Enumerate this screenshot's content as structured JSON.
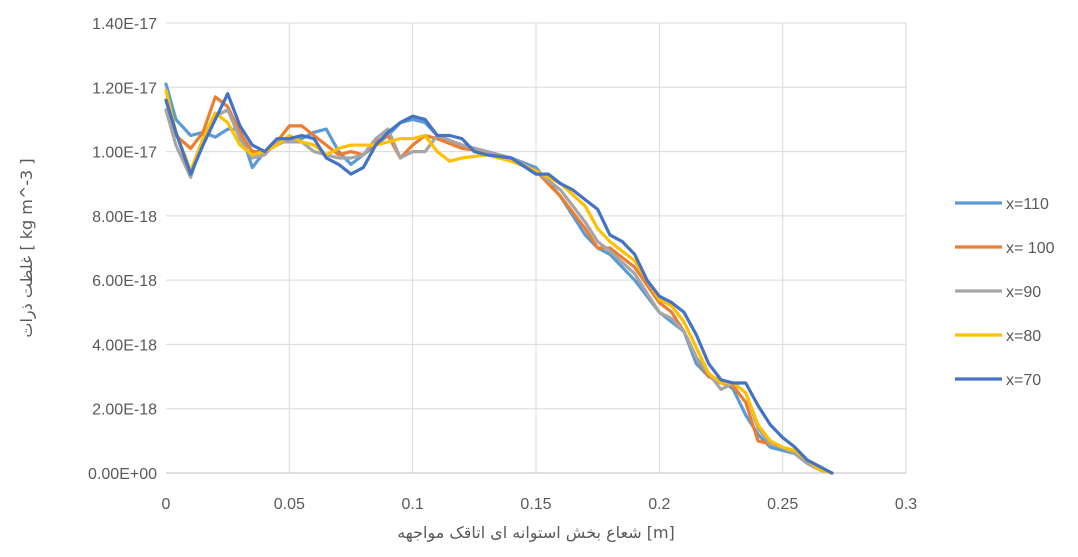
{
  "chart_data": {
    "type": "line",
    "title": "",
    "xlabel": "شعاع بخش استوانه ای اتاقک مواجهه [m]",
    "ylabel": "غلظت ذرات [ kg m^-3 ]",
    "xlim": [
      0,
      0.3
    ],
    "ylim": [
      0,
      1.4e-17
    ],
    "x_ticks": [
      0,
      0.05,
      0.1,
      0.15,
      0.2,
      0.25,
      0.3
    ],
    "x_tick_labels": [
      "0",
      "0.05",
      "0.1",
      "0.15",
      "0.2",
      "0.25",
      "0.3"
    ],
    "y_ticks": [
      0,
      2e-18,
      4e-18,
      6e-18,
      8e-18,
      1e-17,
      1.2e-17,
      1.4e-17
    ],
    "y_tick_labels": [
      "0.00E+00",
      "2.00E-18",
      "4.00E-18",
      "6.00E-18",
      "8.00E-18",
      "1.00E-17",
      "1.20E-17",
      "1.40E-17"
    ],
    "grid": true,
    "legend_position": "right",
    "series": [
      {
        "name": "x=110",
        "color": "#5B9BD5",
        "points": [
          [
            0,
            12.1
          ],
          [
            0.004,
            11.0
          ],
          [
            0.01,
            10.5
          ],
          [
            0.015,
            10.6
          ],
          [
            0.02,
            10.45
          ],
          [
            0.025,
            10.7
          ],
          [
            0.03,
            10.7
          ],
          [
            0.035,
            9.5
          ],
          [
            0.04,
            10.0
          ],
          [
            0.045,
            10.2
          ],
          [
            0.05,
            10.4
          ],
          [
            0.055,
            10.4
          ],
          [
            0.06,
            10.6
          ],
          [
            0.065,
            10.7
          ],
          [
            0.07,
            10.0
          ],
          [
            0.075,
            9.6
          ],
          [
            0.08,
            9.9
          ],
          [
            0.085,
            10.2
          ],
          [
            0.09,
            10.5
          ],
          [
            0.095,
            10.9
          ],
          [
            0.1,
            11.0
          ],
          [
            0.105,
            10.9
          ],
          [
            0.11,
            10.5
          ],
          [
            0.12,
            10.2
          ],
          [
            0.13,
            10.0
          ],
          [
            0.14,
            9.8
          ],
          [
            0.15,
            9.5
          ],
          [
            0.16,
            8.6
          ],
          [
            0.17,
            7.4
          ],
          [
            0.175,
            7.0
          ],
          [
            0.18,
            6.8
          ],
          [
            0.19,
            6.0
          ],
          [
            0.2,
            5.0
          ],
          [
            0.21,
            4.4
          ],
          [
            0.215,
            3.4
          ],
          [
            0.22,
            3.0
          ],
          [
            0.225,
            2.9
          ],
          [
            0.23,
            2.6
          ],
          [
            0.235,
            1.8
          ],
          [
            0.24,
            1.2
          ],
          [
            0.245,
            0.8
          ],
          [
            0.25,
            0.7
          ],
          [
            0.255,
            0.6
          ],
          [
            0.26,
            0.3
          ],
          [
            0.265,
            0.1
          ],
          [
            0.27,
            0.0
          ]
        ]
      },
      {
        "name": "x= 100",
        "color": "#ED7D31",
        "points": [
          [
            0,
            11.6
          ],
          [
            0.004,
            10.5
          ],
          [
            0.01,
            10.1
          ],
          [
            0.015,
            10.6
          ],
          [
            0.02,
            11.7
          ],
          [
            0.025,
            11.4
          ],
          [
            0.03,
            10.6
          ],
          [
            0.035,
            10.0
          ],
          [
            0.04,
            10.0
          ],
          [
            0.045,
            10.3
          ],
          [
            0.05,
            10.8
          ],
          [
            0.055,
            10.8
          ],
          [
            0.06,
            10.5
          ],
          [
            0.065,
            10.2
          ],
          [
            0.07,
            9.9
          ],
          [
            0.075,
            10.0
          ],
          [
            0.08,
            9.9
          ],
          [
            0.085,
            10.3
          ],
          [
            0.09,
            10.5
          ],
          [
            0.095,
            9.8
          ],
          [
            0.1,
            10.2
          ],
          [
            0.105,
            10.5
          ],
          [
            0.11,
            10.4
          ],
          [
            0.12,
            10.1
          ],
          [
            0.13,
            10.0
          ],
          [
            0.14,
            9.8
          ],
          [
            0.15,
            9.4
          ],
          [
            0.16,
            8.6
          ],
          [
            0.17,
            7.6
          ],
          [
            0.175,
            7.0
          ],
          [
            0.18,
            7.0
          ],
          [
            0.19,
            6.4
          ],
          [
            0.2,
            5.3
          ],
          [
            0.205,
            5.0
          ],
          [
            0.21,
            4.4
          ],
          [
            0.215,
            3.6
          ],
          [
            0.22,
            3.0
          ],
          [
            0.225,
            2.8
          ],
          [
            0.23,
            2.7
          ],
          [
            0.235,
            2.2
          ],
          [
            0.24,
            1.0
          ],
          [
            0.245,
            0.9
          ],
          [
            0.25,
            0.8
          ],
          [
            0.255,
            0.6
          ],
          [
            0.26,
            0.4
          ],
          [
            0.265,
            0.1
          ],
          [
            0.27,
            0.0
          ]
        ]
      },
      {
        "name": "x=90",
        "color": "#A5A5A5",
        "points": [
          [
            0,
            11.3
          ],
          [
            0.004,
            10.2
          ],
          [
            0.01,
            9.2
          ],
          [
            0.015,
            10.4
          ],
          [
            0.02,
            11.1
          ],
          [
            0.025,
            11.3
          ],
          [
            0.03,
            10.4
          ],
          [
            0.035,
            9.8
          ],
          [
            0.04,
            9.9
          ],
          [
            0.045,
            10.3
          ],
          [
            0.05,
            10.3
          ],
          [
            0.055,
            10.3
          ],
          [
            0.06,
            10.0
          ],
          [
            0.065,
            9.9
          ],
          [
            0.07,
            9.8
          ],
          [
            0.075,
            9.8
          ],
          [
            0.08,
            9.9
          ],
          [
            0.085,
            10.4
          ],
          [
            0.09,
            10.7
          ],
          [
            0.095,
            9.8
          ],
          [
            0.1,
            10.0
          ],
          [
            0.105,
            10.0
          ],
          [
            0.11,
            10.5
          ],
          [
            0.12,
            10.2
          ],
          [
            0.13,
            10.0
          ],
          [
            0.14,
            9.8
          ],
          [
            0.15,
            9.4
          ],
          [
            0.16,
            8.8
          ],
          [
            0.17,
            7.8
          ],
          [
            0.175,
            7.2
          ],
          [
            0.18,
            6.9
          ],
          [
            0.19,
            6.2
          ],
          [
            0.2,
            5.0
          ],
          [
            0.205,
            4.8
          ],
          [
            0.21,
            4.4
          ],
          [
            0.215,
            3.6
          ],
          [
            0.22,
            3.1
          ],
          [
            0.225,
            2.6
          ],
          [
            0.23,
            2.8
          ],
          [
            0.235,
            2.5
          ],
          [
            0.24,
            1.4
          ],
          [
            0.245,
            0.9
          ],
          [
            0.25,
            0.8
          ],
          [
            0.255,
            0.6
          ],
          [
            0.26,
            0.3
          ],
          [
            0.265,
            0.1
          ],
          [
            0.27,
            0.0
          ]
        ]
      },
      {
        "name": "x=80",
        "color": "#FFC000",
        "points": [
          [
            0,
            11.9
          ],
          [
            0.004,
            10.6
          ],
          [
            0.01,
            9.4
          ],
          [
            0.015,
            10.4
          ],
          [
            0.02,
            11.2
          ],
          [
            0.025,
            10.9
          ],
          [
            0.03,
            10.2
          ],
          [
            0.035,
            9.9
          ],
          [
            0.04,
            10.0
          ],
          [
            0.045,
            10.2
          ],
          [
            0.05,
            10.5
          ],
          [
            0.055,
            10.3
          ],
          [
            0.06,
            10.2
          ],
          [
            0.065,
            9.9
          ],
          [
            0.07,
            10.1
          ],
          [
            0.075,
            10.2
          ],
          [
            0.08,
            10.2
          ],
          [
            0.085,
            10.2
          ],
          [
            0.09,
            10.3
          ],
          [
            0.095,
            10.4
          ],
          [
            0.1,
            10.4
          ],
          [
            0.105,
            10.5
          ],
          [
            0.11,
            10.0
          ],
          [
            0.115,
            9.7
          ],
          [
            0.12,
            9.8
          ],
          [
            0.13,
            9.9
          ],
          [
            0.14,
            9.7
          ],
          [
            0.15,
            9.4
          ],
          [
            0.16,
            9.0
          ],
          [
            0.17,
            8.3
          ],
          [
            0.175,
            7.6
          ],
          [
            0.18,
            7.2
          ],
          [
            0.19,
            6.6
          ],
          [
            0.2,
            5.4
          ],
          [
            0.205,
            5.2
          ],
          [
            0.21,
            4.7
          ],
          [
            0.215,
            3.9
          ],
          [
            0.22,
            3.1
          ],
          [
            0.225,
            2.8
          ],
          [
            0.23,
            2.8
          ],
          [
            0.235,
            2.5
          ],
          [
            0.24,
            1.5
          ],
          [
            0.245,
            1.0
          ],
          [
            0.25,
            0.8
          ],
          [
            0.255,
            0.7
          ],
          [
            0.26,
            0.4
          ],
          [
            0.265,
            0.1
          ],
          [
            0.27,
            0.0
          ]
        ]
      },
      {
        "name": "x=70",
        "color": "#4472C4",
        "points": [
          [
            0,
            11.6
          ],
          [
            0.004,
            10.6
          ],
          [
            0.01,
            9.3
          ],
          [
            0.015,
            10.2
          ],
          [
            0.02,
            11.0
          ],
          [
            0.025,
            11.8
          ],
          [
            0.03,
            10.8
          ],
          [
            0.035,
            10.2
          ],
          [
            0.04,
            10.0
          ],
          [
            0.045,
            10.4
          ],
          [
            0.05,
            10.4
          ],
          [
            0.055,
            10.5
          ],
          [
            0.06,
            10.4
          ],
          [
            0.065,
            9.8
          ],
          [
            0.07,
            9.6
          ],
          [
            0.075,
            9.3
          ],
          [
            0.08,
            9.5
          ],
          [
            0.085,
            10.2
          ],
          [
            0.09,
            10.6
          ],
          [
            0.095,
            10.9
          ],
          [
            0.1,
            11.1
          ],
          [
            0.105,
            11.0
          ],
          [
            0.11,
            10.5
          ],
          [
            0.115,
            10.5
          ],
          [
            0.12,
            10.4
          ],
          [
            0.125,
            10.0
          ],
          [
            0.13,
            9.9
          ],
          [
            0.14,
            9.8
          ],
          [
            0.15,
            9.3
          ],
          [
            0.155,
            9.3
          ],
          [
            0.16,
            9.0
          ],
          [
            0.165,
            8.8
          ],
          [
            0.17,
            8.5
          ],
          [
            0.175,
            8.2
          ],
          [
            0.18,
            7.4
          ],
          [
            0.185,
            7.2
          ],
          [
            0.19,
            6.8
          ],
          [
            0.195,
            6.0
          ],
          [
            0.2,
            5.5
          ],
          [
            0.205,
            5.3
          ],
          [
            0.21,
            5.0
          ],
          [
            0.215,
            4.3
          ],
          [
            0.22,
            3.4
          ],
          [
            0.225,
            2.9
          ],
          [
            0.23,
            2.8
          ],
          [
            0.235,
            2.8
          ],
          [
            0.24,
            2.1
          ],
          [
            0.245,
            1.5
          ],
          [
            0.25,
            1.1
          ],
          [
            0.255,
            0.8
          ],
          [
            0.26,
            0.4
          ],
          [
            0.265,
            0.2
          ],
          [
            0.27,
            0.0
          ]
        ],
        "points_unit": "1e-18"
      }
    ],
    "y_unit_multiplier": 1e-18
  }
}
